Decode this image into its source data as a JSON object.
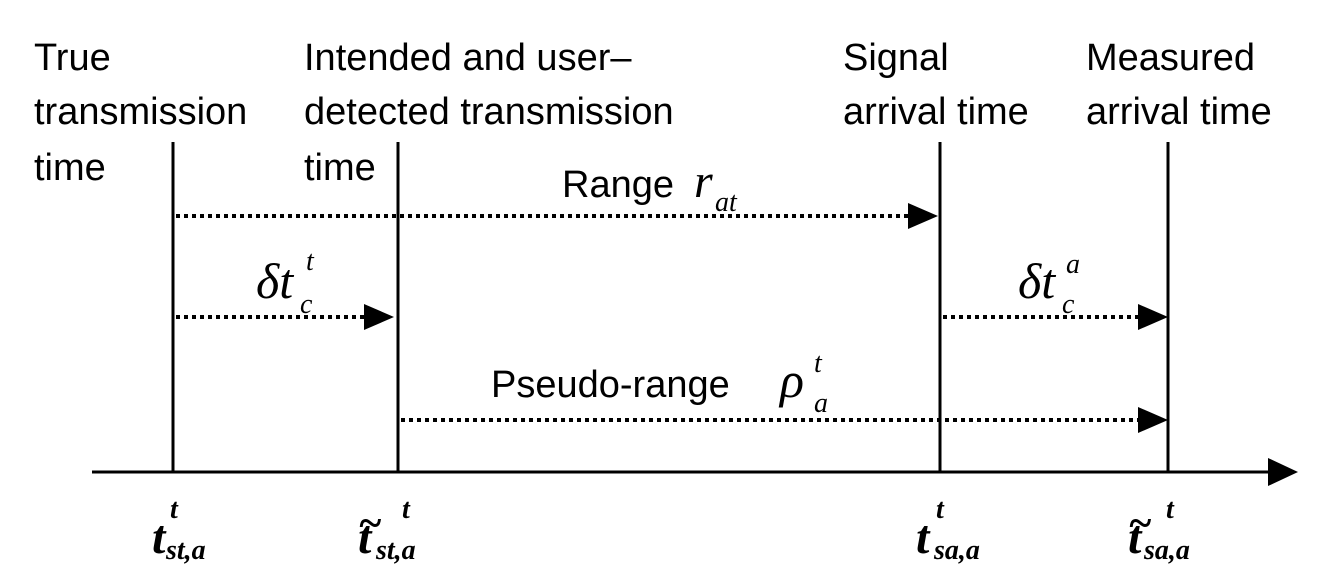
{
  "diagram": {
    "headers": [
      {
        "lines": [
          "True",
          "transmission",
          "time"
        ]
      },
      {
        "lines": [
          "Intended and user–",
          "detected transmission",
          "time"
        ]
      },
      {
        "lines": [
          "Signal",
          "arrival time"
        ]
      },
      {
        "lines": [
          "Measured",
          "arrival time"
        ]
      }
    ],
    "labels": {
      "range_text": "Range",
      "range_symbol": "r",
      "range_sub": "at",
      "clock_symbol": "δt",
      "clock_sat_sup": "t",
      "clock_sat_sub": "c",
      "clock_user_sup": "a",
      "clock_user_sub": "c",
      "pseudo_text": "Pseudo-range",
      "pseudo_symbol": "ρ",
      "pseudo_sup": "t",
      "pseudo_sub": "a"
    },
    "axis_labels": [
      {
        "symbol": "t",
        "tilde": "",
        "sup": "t",
        "sub": "st,a"
      },
      {
        "symbol": "t",
        "tilde": "~",
        "sup": "t",
        "sub": "st,a"
      },
      {
        "symbol": "t",
        "tilde": "",
        "sup": "t",
        "sub": "sa,a"
      },
      {
        "symbol": "t",
        "tilde": "~",
        "sup": "t",
        "sub": "sa,a"
      }
    ]
  }
}
